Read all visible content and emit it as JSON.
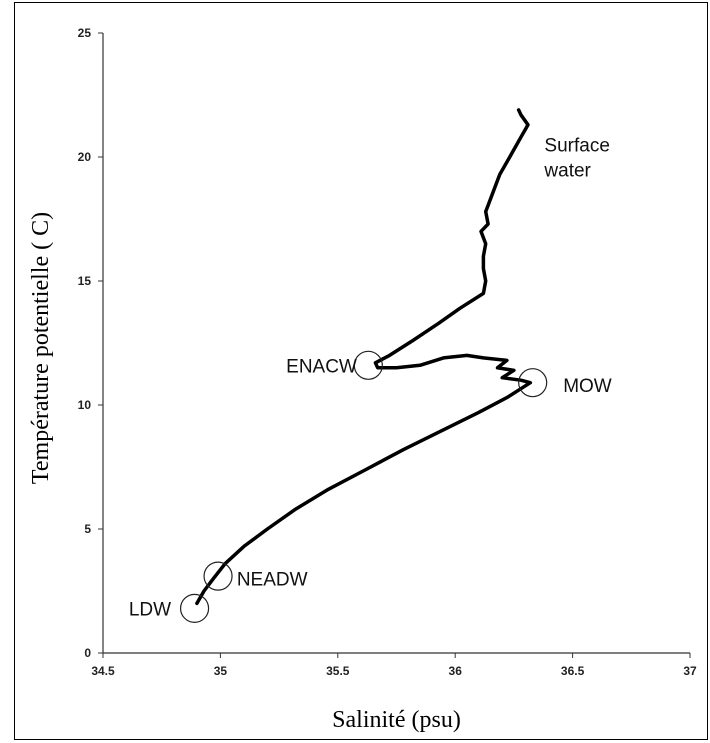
{
  "chart_data": {
    "type": "line",
    "title": "",
    "xlabel": "Salinité (psu)",
    "ylabel": "Température potentielle ( C)",
    "xlim": [
      34.5,
      37
    ],
    "ylim": [
      0,
      25
    ],
    "x_ticks": [
      "34.5",
      "35",
      "35.5",
      "36",
      "36.5",
      "37"
    ],
    "y_ticks": [
      "0",
      "5",
      "10",
      "15",
      "20",
      "25"
    ],
    "grid": false,
    "series": [
      {
        "color": "#000000",
        "points": [
          [
            34.9,
            2.0
          ],
          [
            34.93,
            2.5
          ],
          [
            34.97,
            3.0
          ],
          [
            35.02,
            3.6
          ],
          [
            35.1,
            4.3
          ],
          [
            35.2,
            5.0
          ],
          [
            35.32,
            5.8
          ],
          [
            35.46,
            6.6
          ],
          [
            35.62,
            7.4
          ],
          [
            35.78,
            8.2
          ],
          [
            35.95,
            9.0
          ],
          [
            36.1,
            9.7
          ],
          [
            36.22,
            10.3
          ],
          [
            36.32,
            10.9
          ],
          [
            36.28,
            11.0
          ],
          [
            36.2,
            11.1
          ],
          [
            36.25,
            11.4
          ],
          [
            36.18,
            11.5
          ],
          [
            36.22,
            11.8
          ],
          [
            36.12,
            11.9
          ],
          [
            36.05,
            12.0
          ],
          [
            35.95,
            11.9
          ],
          [
            35.85,
            11.6
          ],
          [
            35.75,
            11.5
          ],
          [
            35.67,
            11.5
          ],
          [
            35.66,
            11.7
          ],
          [
            35.72,
            12.0
          ],
          [
            35.82,
            12.6
          ],
          [
            35.93,
            13.3
          ],
          [
            36.02,
            13.9
          ],
          [
            36.12,
            14.5
          ],
          [
            36.13,
            15.0
          ],
          [
            36.12,
            15.5
          ],
          [
            36.12,
            16.0
          ],
          [
            36.13,
            16.5
          ],
          [
            36.11,
            17.0
          ],
          [
            36.14,
            17.3
          ],
          [
            36.13,
            17.8
          ],
          [
            36.15,
            18.3
          ],
          [
            36.17,
            18.8
          ],
          [
            36.19,
            19.3
          ],
          [
            36.22,
            19.8
          ],
          [
            36.25,
            20.3
          ],
          [
            36.28,
            20.8
          ],
          [
            36.31,
            21.3
          ],
          [
            36.28,
            21.7
          ],
          [
            36.27,
            21.9
          ]
        ]
      }
    ],
    "annotations": [
      {
        "text": "Surface",
        "x": 36.38,
        "y": 20.5
      },
      {
        "text": "water",
        "x": 36.38,
        "y": 19.5
      },
      {
        "text": "ENACW",
        "x": 35.28,
        "y": 11.6
      },
      {
        "text": "MOW",
        "x": 36.46,
        "y": 10.8
      },
      {
        "text": "NEADW",
        "x": 35.07,
        "y": 3.0
      },
      {
        "text": "LDW",
        "x": 34.61,
        "y": 1.8
      }
    ],
    "circles": [
      {
        "x": 35.63,
        "y": 11.6
      },
      {
        "x": 36.33,
        "y": 10.9
      },
      {
        "x": 34.99,
        "y": 3.1
      },
      {
        "x": 34.89,
        "y": 1.8
      }
    ]
  }
}
